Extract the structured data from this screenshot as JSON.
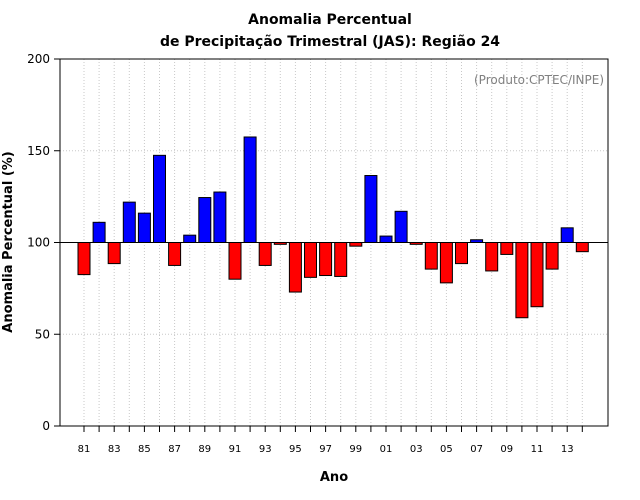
{
  "chart_data": {
    "type": "bar",
    "title": "Anomalia Percentual",
    "subtitle": "de Precipitação Trimestral (JAS): Região 24",
    "xlabel": "Ano",
    "ylabel": "Anomalia Percentual (%)",
    "annotation": "(Produto:CPTEC/INPE)",
    "baseline": 100,
    "ylim": [
      0,
      200
    ],
    "yticks": [
      0,
      50,
      100,
      150,
      200
    ],
    "grid": true,
    "colors": {
      "above": "#0000ff",
      "below": "#ff0000",
      "baseline": "#000000",
      "grid": "#c8c8c8"
    },
    "categories": [
      "81",
      "82",
      "83",
      "84",
      "85",
      "86",
      "87",
      "88",
      "89",
      "90",
      "91",
      "92",
      "93",
      "94",
      "95",
      "96",
      "97",
      "98",
      "99",
      "00",
      "01",
      "02",
      "03",
      "04",
      "05",
      "06",
      "07",
      "08",
      "09",
      "10",
      "11",
      "12",
      "13",
      "14"
    ],
    "xtick_labels": [
      "81",
      "83",
      "85",
      "87",
      "89",
      "91",
      "93",
      "95",
      "97",
      "99",
      "01",
      "03",
      "05",
      "07",
      "09",
      "11",
      "13"
    ],
    "values": [
      82.5,
      111,
      88.5,
      122,
      116,
      147.5,
      87.5,
      104,
      124.5,
      127.5,
      80,
      157.5,
      87.5,
      99,
      73,
      81,
      82,
      81.5,
      98,
      136.5,
      103.5,
      117,
      99,
      85.5,
      78,
      88.5,
      101.5,
      84.5,
      93.5,
      59,
      65,
      85.5,
      108,
      95
    ]
  }
}
